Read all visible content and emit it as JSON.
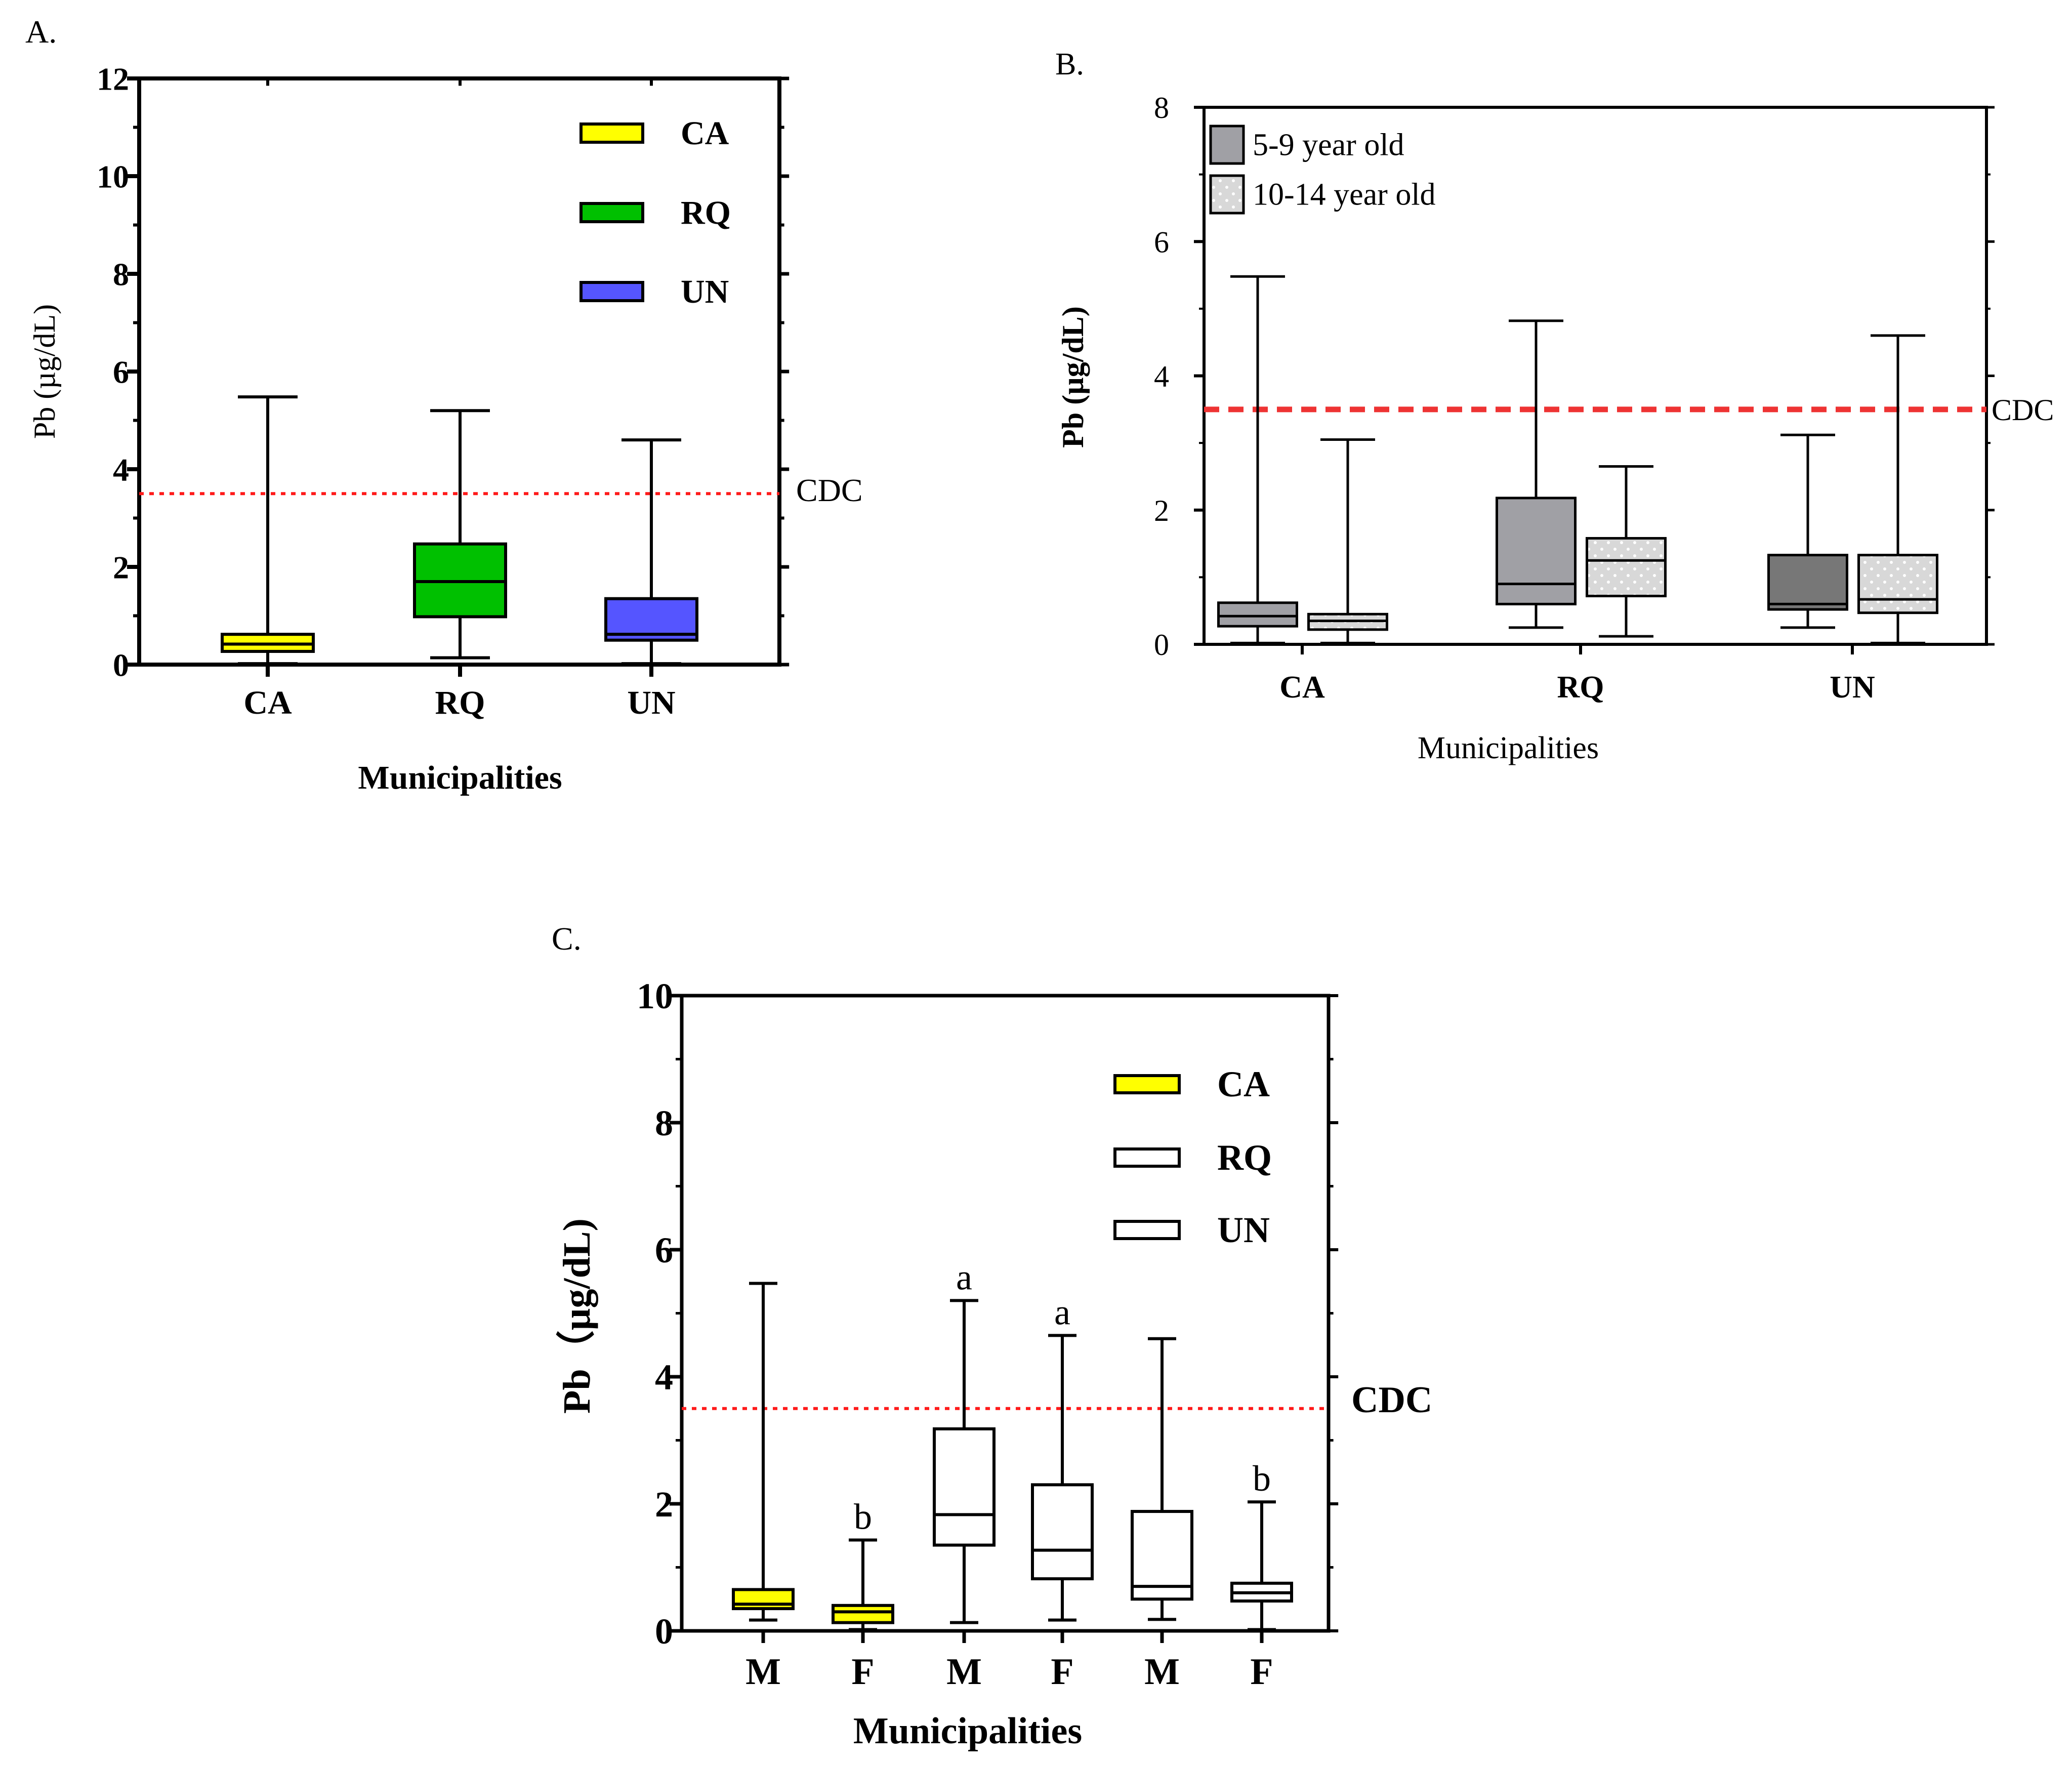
{
  "chart_data": [
    {
      "panel_label": "A.",
      "type": "box",
      "xlabel": "Municipalities",
      "ylabel": "Pb (µg/dL)",
      "ylim": [
        0,
        12
      ],
      "yticks": [
        "0",
        "2",
        "4",
        "6",
        "8",
        "10",
        "12"
      ],
      "categories": [
        "CA",
        "RQ",
        "UN"
      ],
      "reference_line": {
        "value": 3.5,
        "label": "CDC",
        "color": "#ff1a1a",
        "style": "dotted"
      },
      "legend": {
        "position": "top-right",
        "entries": [
          {
            "label": "CA",
            "color": "#ffff00"
          },
          {
            "label": "RQ",
            "color": "#00c000"
          },
          {
            "label": "UN",
            "color": "#5555ff"
          }
        ]
      },
      "boxes": [
        {
          "category": "CA",
          "min": 0.02,
          "q1": 0.27,
          "median": 0.42,
          "q3": 0.62,
          "max": 5.48,
          "color": "#ffff00"
        },
        {
          "category": "RQ",
          "min": 0.14,
          "q1": 0.98,
          "median": 1.7,
          "q3": 2.47,
          "max": 5.2,
          "color": "#00c000"
        },
        {
          "category": "UN",
          "min": 0.02,
          "q1": 0.5,
          "median": 0.62,
          "q3": 1.35,
          "max": 4.6,
          "color": "#5555ff"
        }
      ]
    },
    {
      "panel_label": "B.",
      "type": "box",
      "xlabel": "Municipalities",
      "ylabel": "Pb (µg/dL)",
      "ylim": [
        0,
        8
      ],
      "yticks": [
        "0",
        "2",
        "4",
        "6",
        "8"
      ],
      "categories": [
        "CA",
        "RQ",
        "UN"
      ],
      "reference_line": {
        "value": 3.5,
        "label": "CDC",
        "color": "#ee3333",
        "style": "dashed"
      },
      "legend": {
        "position": "top-left",
        "entries": [
          {
            "label": "5-9 year old",
            "color": "#a0a0a5",
            "pattern": "solid"
          },
          {
            "label": "10-14 year old",
            "color": "#d8d8d8",
            "pattern": "dotted"
          }
        ]
      },
      "series": [
        {
          "name": "5-9 year old",
          "boxes": [
            {
              "category": "CA",
              "min": 0.02,
              "q1": 0.27,
              "median": 0.42,
              "q3": 0.62,
              "max": 5.48,
              "color": "#a0a0a5"
            },
            {
              "category": "RQ",
              "min": 0.25,
              "q1": 0.6,
              "median": 0.9,
              "q3": 2.18,
              "max": 4.82,
              "color": "#a0a0a5"
            },
            {
              "category": "UN",
              "min": 0.25,
              "q1": 0.52,
              "median": 0.6,
              "q3": 1.33,
              "max": 3.12,
              "color": "#777777"
            }
          ]
        },
        {
          "name": "10-14 year old",
          "boxes": [
            {
              "category": "CA",
              "min": 0.02,
              "q1": 0.22,
              "median": 0.35,
              "q3": 0.45,
              "max": 3.05,
              "color": "#d8d8d8"
            },
            {
              "category": "RQ",
              "min": 0.12,
              "q1": 0.72,
              "median": 1.25,
              "q3": 1.58,
              "max": 2.65,
              "color": "#d8d8d8"
            },
            {
              "category": "UN",
              "min": 0.02,
              "q1": 0.47,
              "median": 0.67,
              "q3": 1.33,
              "max": 4.6,
              "color": "#d8d8d8"
            }
          ]
        }
      ]
    },
    {
      "panel_label": "C.",
      "type": "box",
      "xlabel": "Municipalities",
      "ylabel": "Pb（µg/dL)",
      "ylim": [
        0,
        10
      ],
      "yticks": [
        "0",
        "2",
        "4",
        "6",
        "8",
        "10"
      ],
      "categories": [
        "M",
        "F",
        "M",
        "F",
        "M",
        "F"
      ],
      "reference_line": {
        "value": 3.5,
        "label": "CDC",
        "color": "#ff1a1a",
        "style": "dotted"
      },
      "legend": {
        "position": "top-right",
        "entries": [
          {
            "label": "CA",
            "color": "#ffff00"
          },
          {
            "label": "RQ",
            "color": "#ffffff"
          },
          {
            "label": "UN",
            "color": "#ffffff"
          }
        ]
      },
      "boxes": [
        {
          "category": "M",
          "group": "CA",
          "min": 0.17,
          "q1": 0.35,
          "median": 0.42,
          "q3": 0.65,
          "max": 5.47,
          "color": "#ffff00",
          "letter": ""
        },
        {
          "category": "F",
          "group": "CA",
          "min": 0.02,
          "q1": 0.13,
          "median": 0.3,
          "q3": 0.4,
          "max": 1.43,
          "color": "#ffff00",
          "letter": "b"
        },
        {
          "category": "M",
          "group": "RQ",
          "min": 0.13,
          "q1": 1.35,
          "median": 1.83,
          "q3": 3.18,
          "max": 5.2,
          "color": "#ffffff",
          "letter": "a"
        },
        {
          "category": "F",
          "group": "RQ",
          "min": 0.17,
          "q1": 0.82,
          "median": 1.27,
          "q3": 2.3,
          "max": 4.65,
          "color": "#ffffff",
          "letter": "a"
        },
        {
          "category": "M",
          "group": "UN",
          "min": 0.18,
          "q1": 0.5,
          "median": 0.7,
          "q3": 1.88,
          "max": 4.6,
          "color": "#ffffff",
          "letter": ""
        },
        {
          "category": "F",
          "group": "UN",
          "min": 0.02,
          "q1": 0.47,
          "median": 0.6,
          "q3": 0.75,
          "max": 2.03,
          "color": "#ffffff",
          "letter": "b"
        }
      ]
    }
  ]
}
